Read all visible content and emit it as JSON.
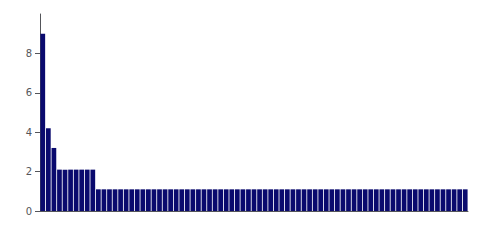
{
  "chart_data": {
    "type": "bar",
    "categories": [
      null,
      null,
      null,
      null,
      null,
      null,
      null,
      null,
      null,
      null,
      null,
      null,
      null,
      null,
      null,
      null,
      null,
      null,
      null,
      null,
      null,
      null,
      null,
      null,
      null,
      null,
      null,
      null,
      null,
      null,
      null,
      null,
      null,
      null,
      null,
      null,
      null,
      null,
      null,
      null,
      null,
      null,
      null,
      null,
      null,
      null,
      null,
      null,
      null,
      null,
      null,
      null,
      null,
      null,
      null,
      null,
      null,
      null,
      null,
      null,
      null,
      null,
      null,
      null,
      null,
      null,
      null,
      null,
      null,
      null,
      null,
      null,
      null,
      null,
      null,
      null,
      null
    ],
    "values": [
      9.0,
      4.2,
      3.2,
      2.1,
      2.1,
      2.1,
      2.1,
      2.1,
      2.1,
      2.1,
      1.1,
      1.1,
      1.1,
      1.1,
      1.1,
      1.1,
      1.1,
      1.1,
      1.1,
      1.1,
      1.1,
      1.1,
      1.1,
      1.1,
      1.1,
      1.1,
      1.1,
      1.1,
      1.1,
      1.1,
      1.1,
      1.1,
      1.1,
      1.1,
      1.1,
      1.1,
      1.1,
      1.1,
      1.1,
      1.1,
      1.1,
      1.1,
      1.1,
      1.1,
      1.1,
      1.1,
      1.1,
      1.1,
      1.1,
      1.1,
      1.1,
      1.1,
      1.1,
      1.1,
      1.1,
      1.1,
      1.1,
      1.1,
      1.1,
      1.1,
      1.1,
      1.1,
      1.1,
      1.1,
      1.1,
      1.1,
      1.1,
      1.1,
      1.1,
      1.1,
      1.1,
      1.1,
      1.1,
      1.1,
      1.1,
      1.1,
      1.1
    ],
    "color": "#0a0a6e",
    "ylim": [
      0,
      10.0
    ],
    "yticks": [
      0,
      2,
      4,
      6,
      8
    ],
    "grid": false,
    "tick_labels": "y"
  }
}
